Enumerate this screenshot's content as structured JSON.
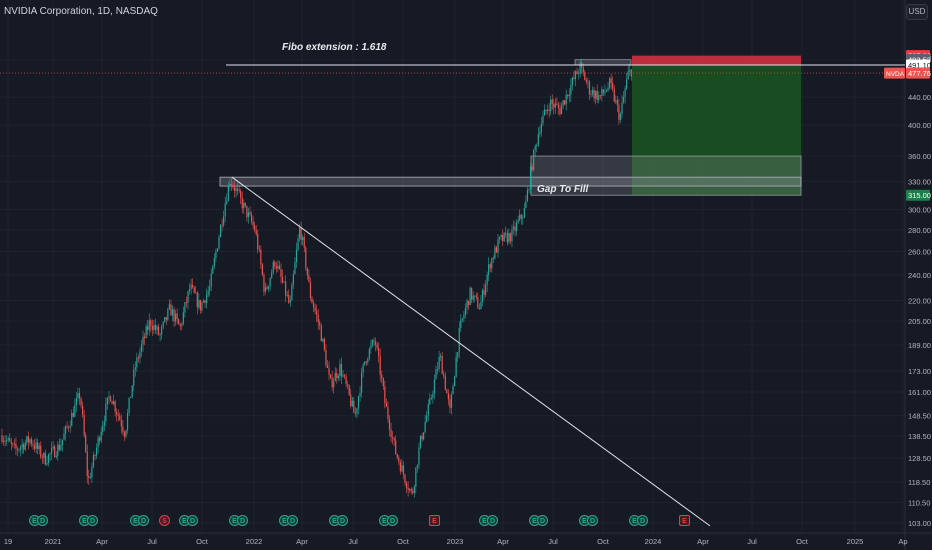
{
  "header": {
    "symbol_title": "NVIDIA Corporation, 1D, NASDAQ",
    "currency": "USD"
  },
  "annotations": {
    "fibo_label": "Fibo extension : 1.618",
    "gap_label": "Gap To Fill"
  },
  "price_tags": {
    "target": "507.03",
    "fibo": "493.53",
    "level": "491.10",
    "last_symbol": "NVDA",
    "last": "477.76",
    "stop_target": "315.00"
  },
  "colors": {
    "background": "#161a25",
    "up": "#26a69a",
    "down": "#ef5350",
    "stop_zone": "#f23645",
    "profit_zone": "#1b5e20",
    "gap_zone": "#9598a1",
    "grid": "#1f2330",
    "axis_text": "#b2b5be"
  },
  "events": [
    {
      "icon": "earnings-icon",
      "letter": "E"
    },
    {
      "icon": "dividend-icon",
      "letter": "D"
    },
    {
      "icon": "earnings-icon",
      "letter": "E"
    },
    {
      "icon": "dividend-icon",
      "letter": "D"
    },
    {
      "icon": "earnings-icon",
      "letter": "E"
    },
    {
      "icon": "dividend-icon",
      "letter": "D"
    },
    {
      "icon": "split-icon",
      "letter": "S"
    },
    {
      "icon": "earnings-icon",
      "letter": "E"
    },
    {
      "icon": "dividend-icon",
      "letter": "D"
    },
    {
      "icon": "earnings-icon",
      "letter": "E"
    },
    {
      "icon": "dividend-icon",
      "letter": "D"
    },
    {
      "icon": "earnings-icon",
      "letter": "E"
    },
    {
      "icon": "dividend-icon",
      "letter": "D"
    },
    {
      "icon": "earnings-icon",
      "letter": "E"
    },
    {
      "icon": "dividend-icon",
      "letter": "D"
    },
    {
      "icon": "earnings-icon",
      "letter": "E"
    },
    {
      "icon": "dividend-icon",
      "letter": "D"
    },
    {
      "icon": "upcoming-earnings-icon",
      "letter": "E"
    },
    {
      "icon": "earnings-icon",
      "letter": "E"
    },
    {
      "icon": "dividend-icon",
      "letter": "D"
    },
    {
      "icon": "earnings-icon",
      "letter": "E"
    },
    {
      "icon": "dividend-icon",
      "letter": "D"
    },
    {
      "icon": "earnings-icon",
      "letter": "E"
    },
    {
      "icon": "dividend-icon",
      "letter": "D"
    },
    {
      "icon": "earnings-icon",
      "letter": "E"
    },
    {
      "icon": "dividend-icon",
      "letter": "D"
    },
    {
      "icon": "upcoming-earnings-icon",
      "letter": "E"
    }
  ],
  "chart_data": {
    "type": "candlestick",
    "title": "NVIDIA Corporation, 1D, NASDAQ",
    "y_scale": "log",
    "ylim": [
      100,
      505
    ],
    "y_ticks": [
      103.0,
      110.5,
      118.5,
      128.5,
      138.5,
      148.5,
      161.0,
      173.0,
      189.0,
      205.0,
      220.0,
      240.0,
      260.0,
      280.0,
      300.0,
      330.0,
      360.0,
      400.0,
      440.0,
      500.0
    ],
    "x_ticks": [
      "19",
      "2021",
      "Apr",
      "Jul",
      "Oct",
      "2022",
      "Apr",
      "Jul",
      "Oct",
      "2023",
      "Apr",
      "Jul",
      "Oct",
      "2024",
      "Apr",
      "Jul",
      "Oct",
      "2025",
      "Ap"
    ],
    "price_path": [
      [
        0,
        140
      ],
      [
        15,
        132
      ],
      [
        30,
        137
      ],
      [
        45,
        128
      ],
      [
        60,
        134
      ],
      [
        70,
        146
      ],
      [
        80,
        160
      ],
      [
        88,
        118
      ],
      [
        95,
        130
      ],
      [
        110,
        160
      ],
      [
        125,
        140
      ],
      [
        135,
        175
      ],
      [
        150,
        205
      ],
      [
        160,
        195
      ],
      [
        170,
        214
      ],
      [
        180,
        200
      ],
      [
        190,
        230
      ],
      [
        200,
        215
      ],
      [
        210,
        230
      ],
      [
        220,
        280
      ],
      [
        230,
        333
      ],
      [
        245,
        300
      ],
      [
        255,
        280
      ],
      [
        265,
        225
      ],
      [
        275,
        252
      ],
      [
        290,
        215
      ],
      [
        300,
        283
      ],
      [
        310,
        225
      ],
      [
        320,
        200
      ],
      [
        330,
        165
      ],
      [
        340,
        175
      ],
      [
        355,
        148
      ],
      [
        365,
        180
      ],
      [
        375,
        192
      ],
      [
        385,
        155
      ],
      [
        395,
        132
      ],
      [
        405,
        120
      ],
      [
        412,
        113
      ],
      [
        420,
        135
      ],
      [
        430,
        155
      ],
      [
        440,
        182
      ],
      [
        450,
        150
      ],
      [
        460,
        200
      ],
      [
        470,
        225
      ],
      [
        480,
        215
      ],
      [
        490,
        250
      ],
      [
        500,
        270
      ],
      [
        512,
        275
      ],
      [
        525,
        300
      ],
      [
        532,
        350
      ],
      [
        540,
        400
      ],
      [
        550,
        432
      ],
      [
        560,
        422
      ],
      [
        570,
        455
      ],
      [
        580,
        488
      ],
      [
        590,
        450
      ],
      [
        600,
        440
      ],
      [
        610,
        460
      ],
      [
        620,
        410
      ],
      [
        628,
        475
      ],
      [
        632,
        484
      ]
    ],
    "fibo_level": 491.1,
    "trendline": [
      [
        232,
        335
      ],
      [
        710,
        102
      ]
    ],
    "gap_zone": [
      315,
      360
    ],
    "resistance_zone": [
      325,
      335
    ],
    "position": {
      "entry": 491.1,
      "stop": 507.03,
      "target": 315.0
    },
    "last_price": 477.76
  }
}
